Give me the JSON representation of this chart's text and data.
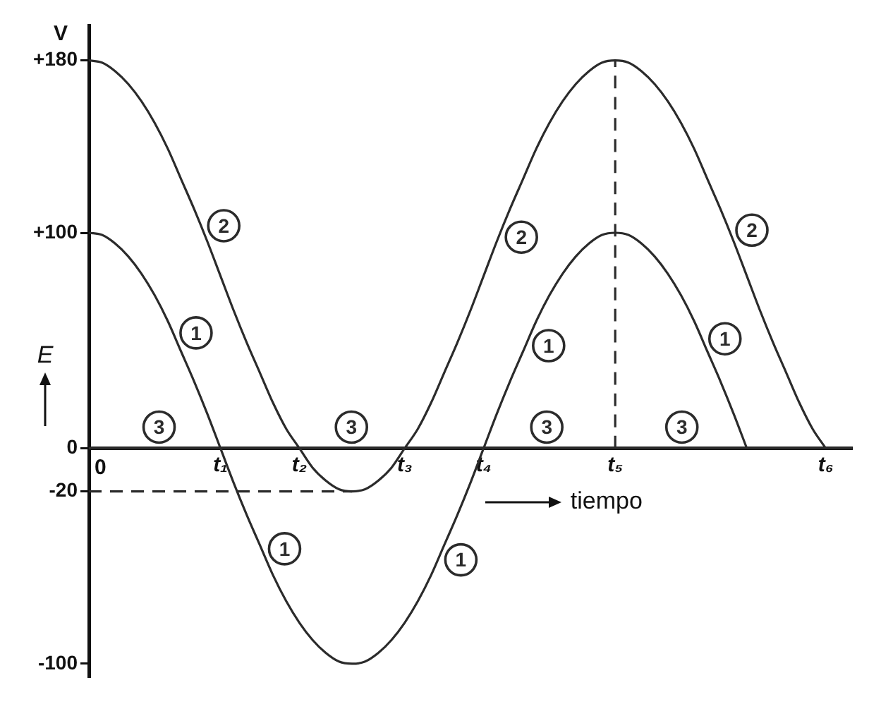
{
  "chart_data": {
    "type": "line",
    "ylabel": "E",
    "xlabel": "tiempo",
    "annotations": [
      "V",
      "0"
    ],
    "categories": [
      null,
      null,
      null,
      null,
      null,
      null,
      null,
      null,
      null,
      null,
      "t₁",
      null,
      null,
      null,
      null,
      null,
      "t₂",
      null,
      null,
      null,
      null,
      null,
      null,
      null,
      "t₃",
      null,
      null,
      null,
      null,
      null,
      "t₄",
      null,
      null,
      null,
      null,
      null,
      null,
      null,
      null,
      null,
      "t₅",
      null,
      null,
      null,
      null,
      null,
      null,
      null,
      null,
      null,
      null,
      null,
      null,
      null,
      null,
      null,
      "t₆",
      null,
      null
    ],
    "ylim": [
      -106,
      196
    ],
    "yticks": [
      {
        "value": 180,
        "label": "+180"
      },
      {
        "value": 100,
        "label": "+100"
      },
      0,
      -20,
      -100
    ],
    "series": [
      {
        "name": "1",
        "color": "#2b2b2b",
        "values": [
          100,
          99,
          95,
          89,
          81,
          71,
          59,
          45,
          31,
          16,
          0,
          -16,
          -31,
          -45,
          -59,
          -71,
          -81,
          -89,
          -95,
          -99,
          -100,
          -99,
          -95,
          -89,
          -81,
          -71,
          -59,
          -45,
          -31,
          -16,
          0,
          16,
          31,
          45,
          59,
          71,
          81,
          89,
          95,
          99,
          100,
          99,
          95,
          89,
          81,
          71,
          59,
          45,
          31,
          16,
          0,
          null,
          null,
          null,
          null,
          null,
          null,
          null,
          null
        ]
      },
      {
        "name": "2",
        "color": "#2b2b2b",
        "values": [
          180,
          179,
          175,
          169,
          161,
          151,
          139,
          125,
          111,
          96,
          80,
          64,
          49,
          35,
          21,
          9,
          0,
          -9,
          -15,
          -19,
          -20,
          -19,
          -15,
          -9,
          0,
          9,
          21,
          35,
          49,
          64,
          80,
          96,
          111,
          125,
          139,
          151,
          161,
          169,
          175,
          179,
          180,
          179,
          175,
          169,
          161,
          151,
          139,
          125,
          111,
          96,
          80,
          64,
          49,
          35,
          21,
          9,
          0,
          null,
          null
        ]
      },
      {
        "name": "3",
        "color": "#2b2b2b",
        "values": [
          0,
          0,
          0,
          0,
          0,
          0,
          0,
          0,
          0,
          0,
          0,
          0,
          0,
          0,
          0,
          0,
          0,
          0,
          0,
          0,
          0,
          0,
          0,
          0,
          0,
          0,
          0,
          0,
          0,
          0,
          0,
          0,
          0,
          0,
          0,
          0,
          0,
          0,
          0,
          0,
          0,
          0,
          0,
          0,
          0,
          0,
          0,
          0,
          0,
          0,
          0,
          0,
          0,
          0,
          0,
          0,
          0,
          0,
          0
        ]
      },
      {
        "color": "#2b2b2b",
        "x": [
          "t₅",
          "t₅"
        ],
        "values": [
          0,
          180
        ],
        "line_style": "dashed"
      },
      {
        "color": "#2b2b2b",
        "values": [
          -20,
          -20,
          -20,
          -20,
          -20,
          -20,
          -20,
          -20,
          -20,
          -20,
          -20,
          -20,
          -20,
          -20,
          -20,
          -20,
          -20,
          -20,
          -20,
          -20,
          -20,
          null,
          null,
          null,
          null,
          null,
          null,
          null,
          null,
          null,
          null,
          null,
          null,
          null,
          null,
          null,
          null,
          null,
          null,
          null,
          null,
          null,
          null,
          null,
          null,
          null,
          null,
          null,
          null,
          null,
          null,
          null,
          null,
          null,
          null,
          null,
          null,
          null,
          null
        ],
        "line_style": "dashed"
      }
    ]
  }
}
